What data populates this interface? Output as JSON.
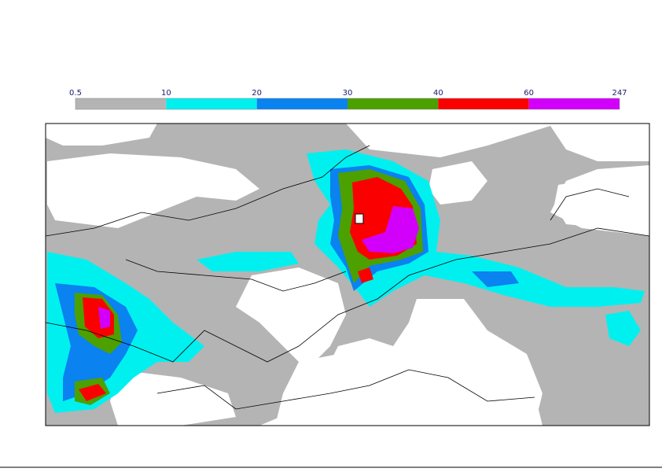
{
  "colorbar": {
    "ticks": [
      0.5,
      10,
      20,
      30,
      40,
      60,
      247
    ],
    "colors": [
      "#b4b4b4",
      "#00f0f0",
      "#0a82f0",
      "#4ca000",
      "#fa0000",
      "#d200fa"
    ]
  }
}
